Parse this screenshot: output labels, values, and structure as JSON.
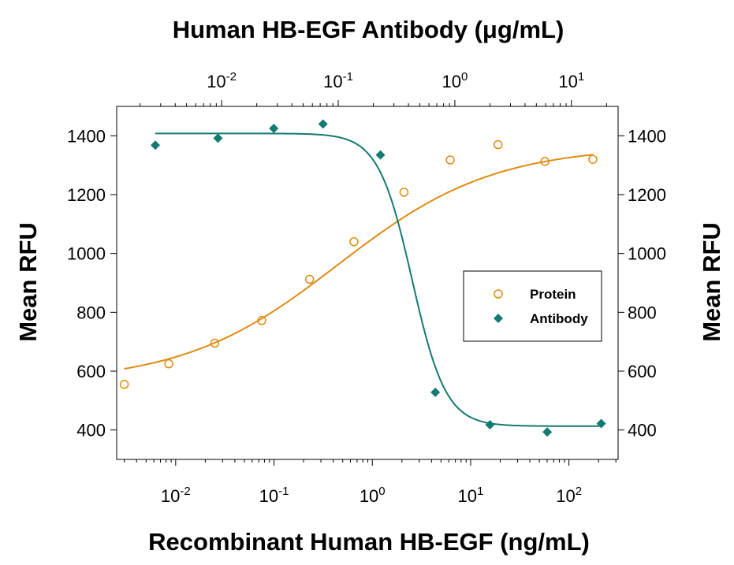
{
  "chart_data": {
    "type": "scatter",
    "xlabel": "Recombinant Human HB-EGF (ng/mL)",
    "x2label": "Human HB-EGF Antibody (μg/mL)",
    "ylabel": "Mean RFU",
    "y2label": "Mean RFU",
    "x_scale": "log",
    "xlim_log10": [
      -2.6,
      2.5
    ],
    "x2lim_log10": [
      -2.9,
      1.4
    ],
    "ylim": [
      300,
      1500
    ],
    "x_ticks": [
      {
        "base": "10",
        "exp": "-2",
        "value": -2
      },
      {
        "base": "10",
        "exp": "-1",
        "value": -1
      },
      {
        "base": "10",
        "exp": "0",
        "value": 0
      },
      {
        "base": "10",
        "exp": "1",
        "value": 1
      },
      {
        "base": "10",
        "exp": "2",
        "value": 2
      }
    ],
    "x2_ticks": [
      {
        "base": "10",
        "exp": "-2",
        "value": -2
      },
      {
        "base": "10",
        "exp": "-1",
        "value": -1
      },
      {
        "base": "10",
        "exp": "0",
        "value": 0
      },
      {
        "base": "10",
        "exp": "1",
        "value": 1
      }
    ],
    "y_ticks": [
      "400",
      "600",
      "800",
      "1000",
      "1200",
      "1400"
    ],
    "y2_ticks": [
      "400",
      "600",
      "800",
      "1000",
      "1200",
      "1400"
    ],
    "legend_position": "center-right",
    "series": [
      {
        "name": "Protein",
        "axis": "bottom",
        "marker": "open-circle",
        "color": "#E08A12",
        "x": [
          0.003,
          0.0085,
          0.025,
          0.075,
          0.23,
          0.65,
          2.1,
          6.2,
          19,
          57,
          175
        ],
        "y": [
          555,
          625,
          695,
          772,
          912,
          1040,
          1208,
          1318,
          1370,
          1313,
          1320
        ]
      },
      {
        "name": "Antibody",
        "axis": "top",
        "marker": "filled-diamond",
        "color": "#147A72",
        "x": [
          0.0027,
          0.0093,
          0.028,
          0.074,
          0.23,
          0.68,
          2.0,
          6.2,
          18
        ],
        "y": [
          1368,
          1392,
          1425,
          1440,
          1335,
          528,
          418,
          393,
          422
        ]
      }
    ],
    "fits": [
      {
        "series": "Protein",
        "bottom": 560,
        "top": 1365,
        "ec50": 0.45,
        "hill": 0.55
      },
      {
        "series": "Antibody",
        "bottom": 413,
        "top": 1408,
        "ec50": 0.43,
        "hill": -3.0
      }
    ]
  }
}
